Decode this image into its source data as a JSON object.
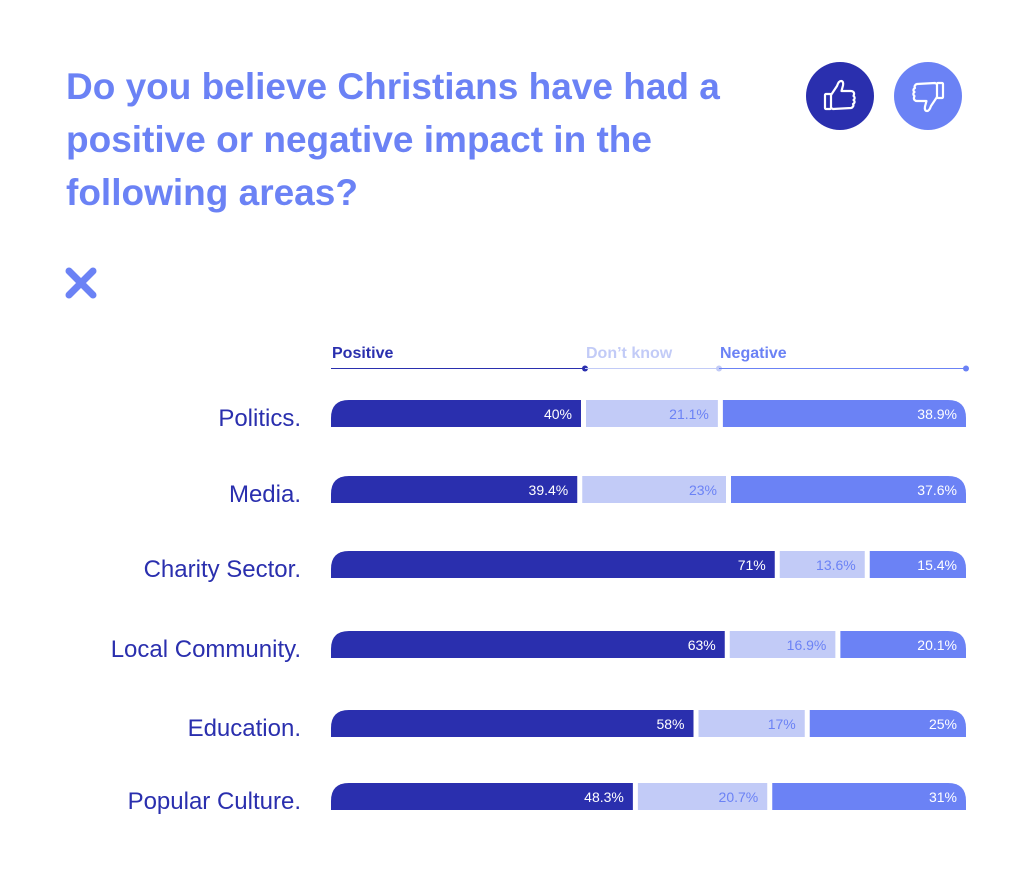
{
  "title": "Do you believe Christians have had a positive or negative impact in the following areas?",
  "icons": {
    "positive": "thumbs-up-icon",
    "negative": "thumbs-down-icon",
    "close": "close-icon"
  },
  "colors": {
    "positive": "#2a2fae",
    "dont_know": "#c2cbf7",
    "negative": "#6b82f5",
    "title": "#6b82f5"
  },
  "chart_data": {
    "type": "bar",
    "orientation": "horizontal",
    "stacked": true,
    "title": "Do you believe Christians have had a positive or negative impact in the following areas?",
    "categories": [
      "Politics.",
      "Media.",
      "Charity Sector.",
      "Local Community.",
      "Education.",
      "Popular Culture."
    ],
    "series": [
      {
        "name": "Positive",
        "values": [
          40,
          39.4,
          71,
          63,
          58,
          48.3
        ],
        "labels": [
          "40%",
          "39.4%",
          "71%",
          "63%",
          "58%",
          "48.3%"
        ]
      },
      {
        "name": "Don’t know",
        "values": [
          21.1,
          23,
          13.6,
          16.9,
          17,
          20.7
        ],
        "labels": [
          "21.1%",
          "23%",
          "13.6%",
          "16.9%",
          "17%",
          "20.7%"
        ]
      },
      {
        "name": "Negative",
        "values": [
          38.9,
          37.6,
          15.4,
          20.1,
          25,
          31
        ],
        "labels": [
          "38.9%",
          "37.6%",
          "15.4%",
          "20.1%",
          "25%",
          "31%"
        ]
      }
    ],
    "xlim": [
      0,
      100
    ],
    "legend_position": "top",
    "grid": false
  }
}
